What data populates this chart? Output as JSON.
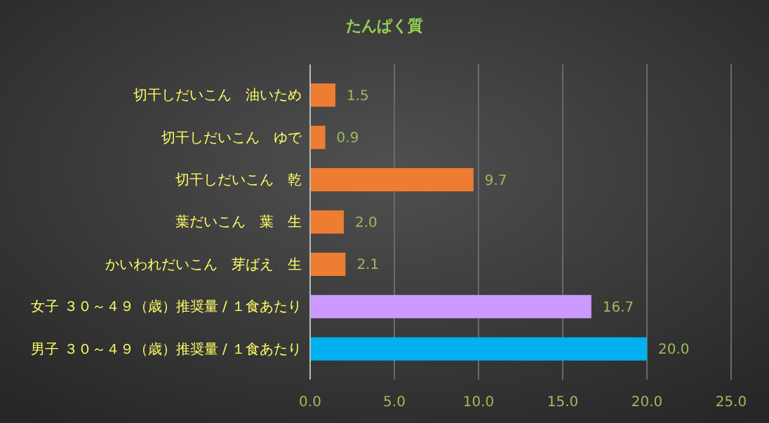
{
  "chart_data": {
    "type": "bar",
    "orientation": "horizontal",
    "title": "たんぱく質",
    "categories": [
      "切干しだいこん　油いため",
      "切干しだいこん　ゆで",
      "切干しだいこん　乾",
      "葉だいこん　葉　生",
      "かいわれだいこん　芽ばえ　生",
      "女子 ３０～４９（歳）推奨量 / １食あたり",
      "男子 ３０～４９（歳）推奨量 / １食あたり"
    ],
    "values": [
      1.5,
      0.9,
      9.7,
      2.0,
      2.1,
      16.7,
      20.0
    ],
    "value_labels": [
      "1.5",
      "0.9",
      "9.7",
      "2.0",
      "2.1",
      "16.7",
      "20.0"
    ],
    "colors": [
      "#ed7d31",
      "#ed7d31",
      "#ed7d31",
      "#ed7d31",
      "#ed7d31",
      "#cc99ff",
      "#00b0f0"
    ],
    "xlim": [
      0,
      25
    ],
    "xticks": [
      {
        "value": 0,
        "label": "0.0"
      },
      {
        "value": 5,
        "label": "5.0"
      },
      {
        "value": 10,
        "label": "10.0"
      },
      {
        "value": 15,
        "label": "15.0"
      },
      {
        "value": 20,
        "label": "20.0"
      },
      {
        "value": 25,
        "label": "25.0"
      }
    ],
    "grid": "x"
  }
}
